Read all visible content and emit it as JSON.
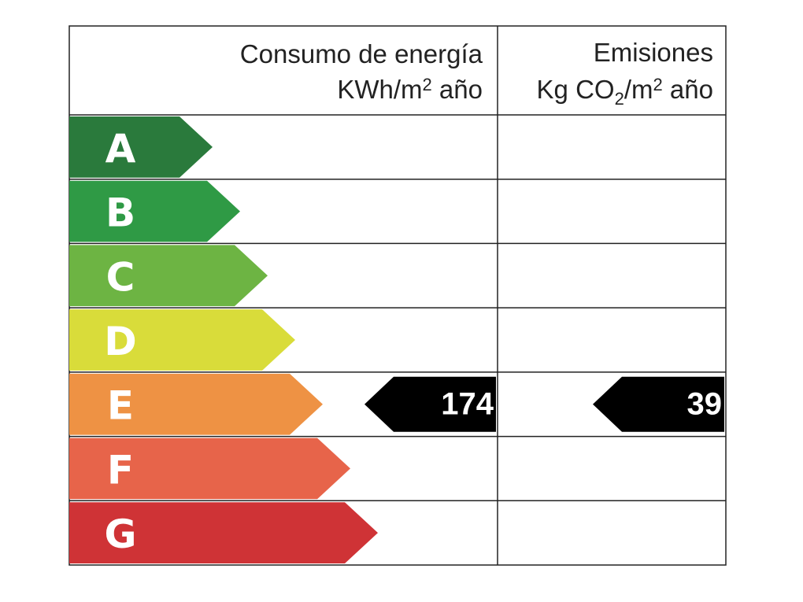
{
  "header": {
    "consumption": {
      "title": "Consumo de energía",
      "unit": [
        "KWh/m",
        "2",
        " año"
      ]
    },
    "emissions": {
      "title": "Emisiones",
      "unit": [
        "Kg CO",
        "2",
        "/m",
        "2",
        " año"
      ]
    }
  },
  "ratings": [
    {
      "letter": "A",
      "color": "#2a7a3c"
    },
    {
      "letter": "B",
      "color": "#2f9a45"
    },
    {
      "letter": "C",
      "color": "#6db443"
    },
    {
      "letter": "D",
      "color": "#d9dc3a"
    },
    {
      "letter": "E",
      "color": "#ee9244"
    },
    {
      "letter": "F",
      "color": "#e7644a"
    },
    {
      "letter": "G",
      "color": "#cf3336"
    }
  ],
  "consumption": {
    "value": 174,
    "rating": "E"
  },
  "emissions": {
    "value": 39,
    "rating": "E"
  }
}
